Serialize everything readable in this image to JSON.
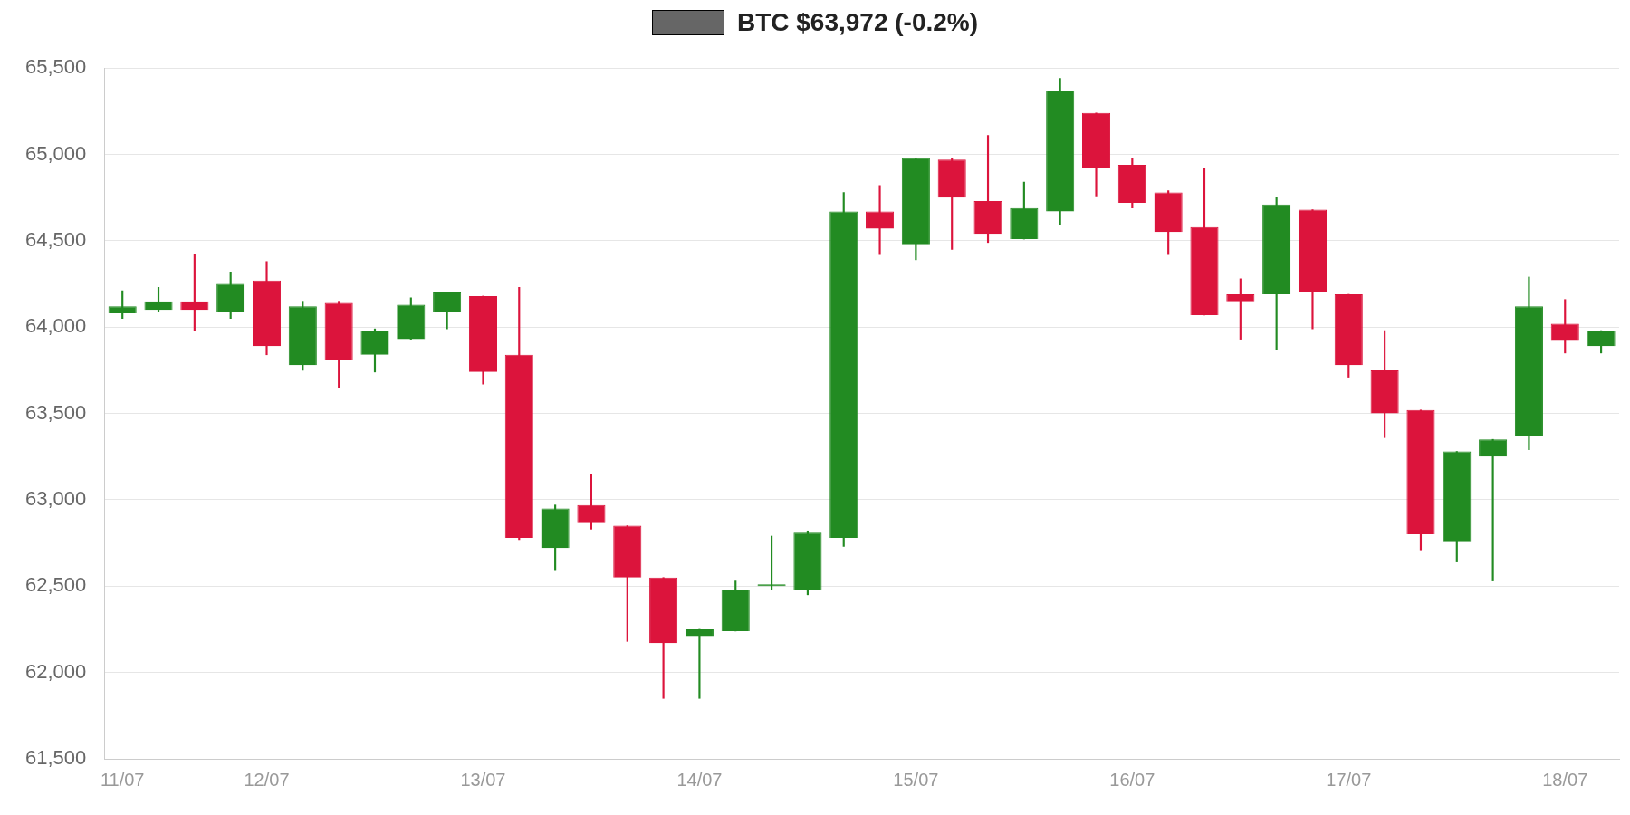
{
  "chart_data": {
    "type": "candlestick",
    "categories": [
      "11/07",
      null,
      null,
      null,
      "12/07",
      null,
      null,
      null,
      null,
      null,
      "13/07",
      null,
      null,
      null,
      null,
      null,
      "14/07",
      null,
      null,
      null,
      null,
      null,
      "15/07",
      null,
      null,
      null,
      null,
      null,
      "16/07",
      null,
      null,
      null,
      null,
      null,
      "17/07",
      null,
      null,
      null,
      null,
      null,
      "18/07",
      null
    ],
    "series": [
      {
        "name": "BTC $63,972 (-0.2%)",
        "color": "#666666",
        "ohlc": [
          [
            64080,
            64210,
            64050,
            64120
          ],
          [
            64100,
            64230,
            64090,
            64150
          ],
          [
            64150,
            64420,
            63980,
            64100
          ],
          [
            64090,
            64320,
            64050,
            64250
          ],
          [
            64270,
            64380,
            63840,
            63890
          ],
          [
            63780,
            64150,
            63750,
            64120
          ],
          [
            64140,
            64150,
            63650,
            63810
          ],
          [
            63840,
            63990,
            63740,
            63980
          ],
          [
            63930,
            64170,
            63930,
            64130
          ],
          [
            64090,
            64200,
            63990,
            64200
          ],
          [
            64180,
            64180,
            63670,
            63740
          ],
          [
            63840,
            64230,
            62770,
            62780
          ],
          [
            62720,
            62970,
            62590,
            62950
          ],
          [
            62970,
            63150,
            62830,
            62870
          ],
          [
            62850,
            62850,
            62180,
            62550
          ],
          [
            62550,
            62550,
            61850,
            62170
          ],
          [
            62210,
            62250,
            61850,
            62250
          ],
          [
            62240,
            62530,
            62240,
            62480
          ],
          [
            62500,
            62790,
            62480,
            62510
          ],
          [
            62480,
            62820,
            62450,
            62810
          ],
          [
            62780,
            64780,
            62730,
            64670
          ],
          [
            64670,
            64820,
            64420,
            64570
          ],
          [
            64480,
            64980,
            64390,
            64980
          ],
          [
            64970,
            64980,
            64450,
            64750
          ],
          [
            64730,
            65110,
            64490,
            64540
          ],
          [
            64510,
            64840,
            64510,
            64690
          ],
          [
            64670,
            65440,
            64590,
            65370
          ],
          [
            65240,
            65240,
            64760,
            64920
          ],
          [
            64940,
            64980,
            64690,
            64720
          ],
          [
            64780,
            64790,
            64420,
            64550
          ],
          [
            64580,
            64920,
            64070,
            64070
          ],
          [
            64190,
            64280,
            63930,
            64150
          ],
          [
            64190,
            64750,
            63870,
            64710
          ],
          [
            64680,
            64680,
            63990,
            64200
          ],
          [
            64190,
            64190,
            63710,
            63780
          ],
          [
            63750,
            63980,
            63360,
            63500
          ],
          [
            63520,
            63520,
            62710,
            62800
          ],
          [
            62760,
            63280,
            62640,
            63280
          ],
          [
            63250,
            63350,
            62530,
            63350
          ],
          [
            63370,
            64290,
            63290,
            64120
          ],
          [
            64020,
            64160,
            63850,
            63920
          ],
          [
            63890,
            63980,
            63850,
            63980
          ]
        ],
        "colors": [
          "#228b22",
          "#228b22",
          "#dc143c",
          "#228b22",
          "#dc143c",
          "#228b22",
          "#dc143c",
          "#228b22",
          "#228b22",
          "#228b22",
          "#dc143c",
          "#dc143c",
          "#228b22",
          "#dc143c",
          "#dc143c",
          "#dc143c",
          "#228b22",
          "#228b22",
          "#228b22",
          "#228b22",
          "#228b22",
          "#dc143c",
          "#228b22",
          "#dc143c",
          "#dc143c",
          "#228b22",
          "#228b22",
          "#dc143c",
          "#dc143c",
          "#dc143c",
          "#dc143c",
          "#dc143c",
          "#228b22",
          "#dc143c",
          "#dc143c",
          "#dc143c",
          "#dc143c",
          "#228b22",
          "#228b22",
          "#228b22",
          "#dc143c",
          "#228b22"
        ]
      }
    ],
    "ylim": [
      61500,
      65500
    ],
    "yticks": [
      {
        "value": 61500,
        "label": "61,500"
      },
      {
        "value": 62000,
        "label": "62,000"
      },
      {
        "value": 62500,
        "label": "62,500"
      },
      {
        "value": 63000,
        "label": "63,000"
      },
      {
        "value": 63500,
        "label": "63,500"
      },
      {
        "value": 64000,
        "label": "64,000"
      },
      {
        "value": 64500,
        "label": "64,500"
      },
      {
        "value": 65000,
        "label": "65,000"
      },
      {
        "value": 65500,
        "label": "65,500"
      }
    ],
    "grid": "y",
    "legend": "top"
  }
}
